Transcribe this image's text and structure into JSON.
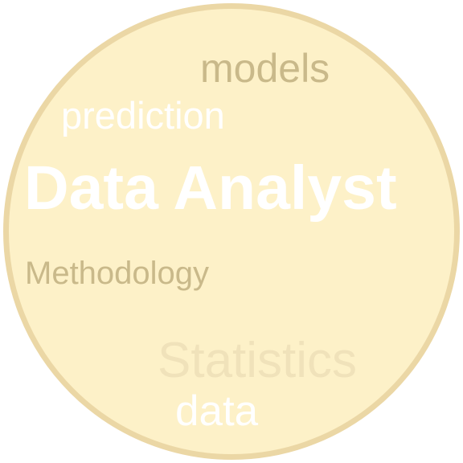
{
  "badge": {
    "fill_color": "#fdf1c8",
    "border_color": "#ebd7a5"
  },
  "words": {
    "models": "models",
    "prediction": "prediction",
    "title": "Data Analyst",
    "methodology": "Methodology",
    "statistics": "Statistics",
    "data": "data"
  },
  "colors": {
    "muted_gold": "#c9b98a",
    "faint_gold": "#f0e2ba",
    "white": "#ffffff"
  }
}
